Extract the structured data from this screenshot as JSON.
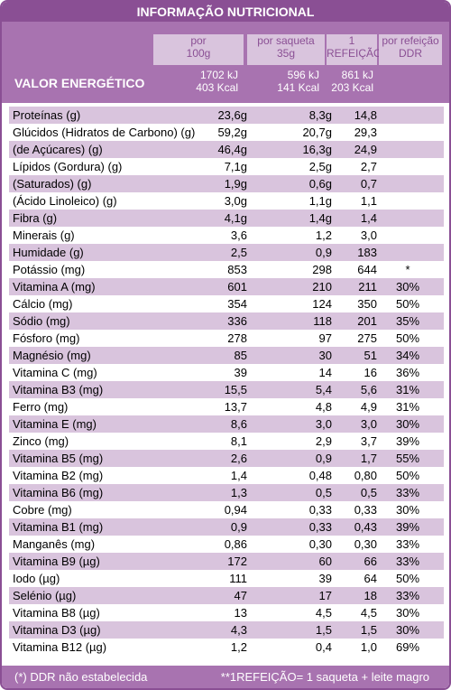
{
  "title": "INFORMAÇÃO NUTRICIONAL",
  "header": {
    "energy_label": "VALOR ENERGÉTICO",
    "col1": "por\n100g",
    "col2": "por saqueta\n35g",
    "col3": "1\nREFEIÇÃO**",
    "col4": "por refeição\nDDR",
    "energy": {
      "c1": "1702 kJ\n403 Kcal",
      "c2": "596 kJ\n141 Kcal",
      "c3": "861 kJ\n203 Kcal",
      "c4": ""
    }
  },
  "rows": [
    {
      "label": "Proteínas (g)",
      "v1": "23,6g",
      "v2": "8,3g",
      "v3": "14,8",
      "v4": ""
    },
    {
      "label": "Glúcidos (Hidratos de Carbono) (g)",
      "v1": "59,2g",
      "v2": "20,7g",
      "v3": "29,3",
      "v4": ""
    },
    {
      "label": "(de Açúcares) (g)",
      "v1": "46,4g",
      "v2": "16,3g",
      "v3": "24,9",
      "v4": ""
    },
    {
      "label": "Lípidos (Gordura) (g)",
      "v1": "7,1g",
      "v2": "2,5g",
      "v3": "2,7",
      "v4": ""
    },
    {
      "label": "(Saturados) (g)",
      "v1": "1,9g",
      "v2": "0,6g",
      "v3": "0,7",
      "v4": ""
    },
    {
      "label": "(Ácido Linoleico) (g)",
      "v1": "3,0g",
      "v2": "1,1g",
      "v3": "1,1",
      "v4": ""
    },
    {
      "label": "Fibra (g)",
      "v1": "4,1g",
      "v2": "1,4g",
      "v3": "1,4",
      "v4": ""
    },
    {
      "label": "Minerais (g)",
      "v1": "3,6",
      "v2": "1,2",
      "v3": "3,0",
      "v4": ""
    },
    {
      "label": "Humidade (g)",
      "v1": "2,5",
      "v2": "0,9",
      "v3": "183",
      "v4": ""
    },
    {
      "label": "Potássio (mg)",
      "v1": "853",
      "v2": "298",
      "v3": "644",
      "v4": "*"
    },
    {
      "label": "Vitamina A (mg)",
      "v1": "601",
      "v2": "210",
      "v3": "211",
      "v4": "30%"
    },
    {
      "label": "Cálcio (mg)",
      "v1": "354",
      "v2": "124",
      "v3": "350",
      "v4": "50%"
    },
    {
      "label": "Sódio (mg)",
      "v1": "336",
      "v2": "118",
      "v3": "201",
      "v4": "35%"
    },
    {
      "label": "Fósforo (mg)",
      "v1": "278",
      "v2": "97",
      "v3": "275",
      "v4": "50%"
    },
    {
      "label": "Magnésio (mg)",
      "v1": "85",
      "v2": "30",
      "v3": "51",
      "v4": "34%"
    },
    {
      "label": "Vitamina C (mg)",
      "v1": "39",
      "v2": "14",
      "v3": "16",
      "v4": "36%"
    },
    {
      "label": "Vitamina B3 (mg)",
      "v1": "15,5",
      "v2": "5,4",
      "v3": "5,6",
      "v4": "31%"
    },
    {
      "label": "Ferro (mg)",
      "v1": "13,7",
      "v2": "4,8",
      "v3": "4,9",
      "v4": "31%"
    },
    {
      "label": "Vitamina E (mg)",
      "v1": "8,6",
      "v2": "3,0",
      "v3": "3,0",
      "v4": "30%"
    },
    {
      "label": "Zinco (mg)",
      "v1": "8,1",
      "v2": "2,9",
      "v3": "3,7",
      "v4": "39%"
    },
    {
      "label": "Vitamina B5 (mg)",
      "v1": "2,6",
      "v2": "0,9",
      "v3": "1,7",
      "v4": "55%"
    },
    {
      "label": "Vitamina B2 (mg)",
      "v1": "1,4",
      "v2": "0,48",
      "v3": "0,80",
      "v4": "50%"
    },
    {
      "label": "Vitamina B6 (mg)",
      "v1": "1,3",
      "v2": "0,5",
      "v3": "0,5",
      "v4": "33%"
    },
    {
      "label": "Cobre (mg)",
      "v1": "0,94",
      "v2": "0,33",
      "v3": "0,33",
      "v4": "30%"
    },
    {
      "label": "Vitamina B1 (mg)",
      "v1": "0,9",
      "v2": "0,33",
      "v3": "0,43",
      "v4": "39%"
    },
    {
      "label": "Manganês (mg)",
      "v1": "0,86",
      "v2": "0,30",
      "v3": "0,30",
      "v4": "33%"
    },
    {
      "label": "Vitamina B9 (µg)",
      "v1": "172",
      "v2": "60",
      "v3": "66",
      "v4": "33%"
    },
    {
      "label": "Iodo (µg)",
      "v1": "111",
      "v2": "39",
      "v3": "64",
      "v4": "50%"
    },
    {
      "label": "Selénio (µg)",
      "v1": "47",
      "v2": "17",
      "v3": "18",
      "v4": "33%"
    },
    {
      "label": "Vitamina B8 (µg)",
      "v1": "13",
      "v2": "4,5",
      "v3": "4,5",
      "v4": "30%"
    },
    {
      "label": "Vitamina D3 (µg)",
      "v1": "4,3",
      "v2": "1,5",
      "v3": "1,5",
      "v4": "30%"
    },
    {
      "label": "Vitamina B12 (µg)",
      "v1": "1,2",
      "v2": "0,4",
      "v3": "1,0",
      "v4": "69%"
    }
  ],
  "footer": {
    "left": "(*) DDR não estabelecida",
    "right": "**1REFEIÇÃO= 1 saqueta + leite magro"
  },
  "colors": {
    "primary": "#8a4f94",
    "light": "#d9c4dd",
    "header_bg": "#a873b0"
  }
}
